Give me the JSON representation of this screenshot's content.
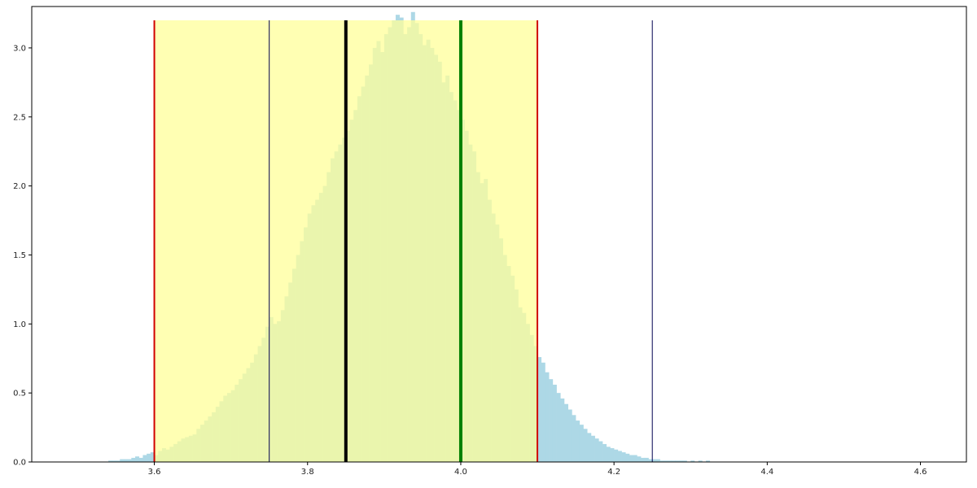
{
  "chart_data": {
    "type": "histogram",
    "title": "",
    "xlabel": "",
    "ylabel": "",
    "xlim": [
      3.44,
      4.66
    ],
    "ylim": [
      0,
      3.3
    ],
    "grid": false,
    "legend": "none",
    "x_ticks": [
      "3.6",
      "3.8",
      "4.0",
      "4.2",
      "4.4",
      "4.6"
    ],
    "y_ticks": [
      "0.0",
      "0.5",
      "1.0",
      "1.5",
      "2.0",
      "2.5",
      "3.0"
    ],
    "bin_start": 3.45,
    "bin_width": 0.005,
    "values": [
      0,
      0,
      0,
      0,
      0,
      0,
      0,
      0,
      0,
      0,
      0,
      0,
      0,
      0,
      0,
      0,
      0,
      0,
      0.01,
      0.01,
      0.01,
      0.02,
      0.02,
      0.02,
      0.03,
      0.04,
      0.03,
      0.05,
      0.06,
      0.07,
      0.05,
      0.08,
      0.1,
      0.09,
      0.11,
      0.13,
      0.15,
      0.17,
      0.18,
      0.19,
      0.2,
      0.24,
      0.27,
      0.3,
      0.33,
      0.36,
      0.4,
      0.44,
      0.48,
      0.5,
      0.52,
      0.56,
      0.6,
      0.64,
      0.68,
      0.72,
      0.78,
      0.84,
      0.9,
      0.98,
      1.05,
      1.0,
      1.02,
      1.1,
      1.2,
      1.3,
      1.4,
      1.5,
      1.6,
      1.7,
      1.8,
      1.86,
      1.9,
      1.95,
      2.0,
      2.1,
      2.2,
      2.25,
      2.3,
      2.35,
      2.4,
      2.48,
      2.55,
      2.65,
      2.72,
      2.8,
      2.88,
      3.0,
      3.05,
      2.97,
      3.1,
      3.15,
      3.2,
      3.24,
      3.22,
      3.1,
      3.15,
      3.26,
      3.18,
      3.1,
      3.02,
      3.06,
      3.0,
      2.95,
      2.9,
      2.75,
      2.8,
      2.68,
      2.62,
      2.55,
      2.48,
      2.4,
      2.3,
      2.25,
      2.1,
      2.02,
      2.05,
      1.9,
      1.8,
      1.72,
      1.62,
      1.5,
      1.42,
      1.35,
      1.25,
      1.12,
      1.08,
      1.0,
      0.92,
      0.84,
      0.76,
      0.72,
      0.65,
      0.6,
      0.56,
      0.5,
      0.46,
      0.42,
      0.38,
      0.34,
      0.3,
      0.27,
      0.24,
      0.21,
      0.19,
      0.17,
      0.15,
      0.13,
      0.11,
      0.1,
      0.09,
      0.08,
      0.07,
      0.06,
      0.05,
      0.05,
      0.04,
      0.03,
      0.03,
      0.02,
      0.02,
      0.02,
      0.01,
      0.01,
      0.01,
      0.01,
      0.01,
      0.01,
      0.01,
      0,
      0.01,
      0,
      0.01,
      0,
      0.01,
      0,
      0,
      0,
      0,
      0,
      0,
      0,
      0,
      0
    ],
    "bar_color": "#add8e6",
    "shaded_region": {
      "x": [
        3.6,
        4.1
      ],
      "color": "#ffff99",
      "opacity": 0.75
    },
    "vertical_lines": [
      {
        "x": 3.6,
        "color": "#d00000",
        "weight": "medium"
      },
      {
        "x": 4.1,
        "color": "#d00000",
        "weight": "medium"
      },
      {
        "x": 3.75,
        "color": "#000050",
        "weight": "thin"
      },
      {
        "x": 4.25,
        "color": "#000050",
        "weight": "thin"
      },
      {
        "x": 3.85,
        "color": "#000000",
        "weight": "thick"
      },
      {
        "x": 4.0,
        "color": "#008000",
        "weight": "thick"
      }
    ],
    "line_top": 3.2
  }
}
